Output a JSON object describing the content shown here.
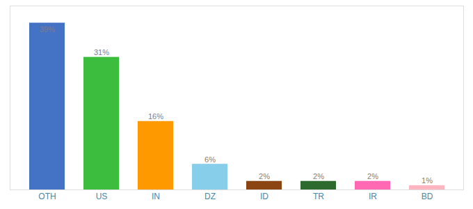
{
  "chart_data": {
    "type": "bar",
    "categories": [
      "OTH",
      "US",
      "IN",
      "DZ",
      "ID",
      "TR",
      "IR",
      "BD"
    ],
    "values": [
      39,
      31,
      16,
      6,
      2,
      2,
      2,
      1
    ],
    "value_labels": [
      "39%",
      "31%",
      "16%",
      "6%",
      "2%",
      "2%",
      "2%",
      "1%"
    ],
    "colors": [
      "#4472C4",
      "#3DBD3D",
      "#FF9900",
      "#87CEEB",
      "#8B4513",
      "#2D6A2D",
      "#FF69B4",
      "#FFB6C1"
    ],
    "ylim": [
      0,
      43
    ],
    "data_labels": true,
    "tick_labels": "x",
    "grid": false
  }
}
